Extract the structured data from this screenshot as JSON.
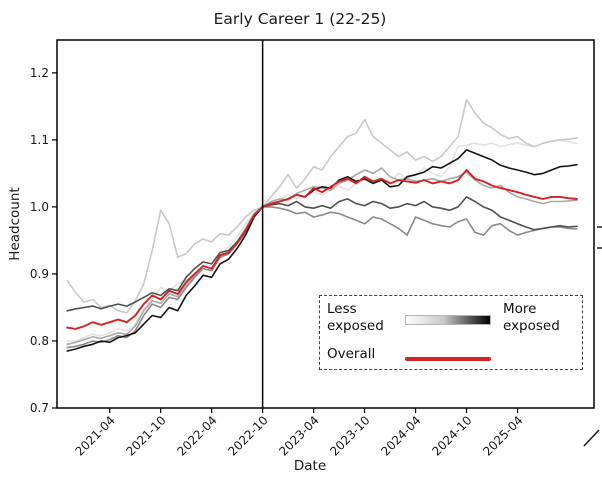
{
  "chart_data": {
    "type": "line",
    "title": "Early Career 1 (22-25)",
    "xlabel": "Date",
    "ylabel": "Headcount",
    "ylim": [
      0.7,
      1.249
    ],
    "yticks": [
      0.7,
      0.8,
      0.9,
      1.0,
      1.1,
      1.2
    ],
    "xtick_labels": [
      "2021-04",
      "2021-10",
      "2022-04",
      "2022-10",
      "2023-04",
      "2023-10",
      "2024-04",
      "2024-10",
      "2025-04"
    ],
    "cutoff_x": "2022-10",
    "grid": false,
    "legend": {
      "less_line1": "Less",
      "less_line2": "exposed",
      "more_line1": "More",
      "more_line2": "exposed",
      "overall_label": "Overall",
      "gradient_colors": [
        "#ffffff",
        "#000000"
      ],
      "overall_color": "#d62222",
      "position": "lower right",
      "border": "dashed"
    },
    "x": [
      "2020-11",
      "2020-12",
      "2021-01",
      "2021-02",
      "2021-03",
      "2021-04",
      "2021-05",
      "2021-06",
      "2021-07",
      "2021-08",
      "2021-09",
      "2021-10",
      "2021-11",
      "2021-12",
      "2022-01",
      "2022-02",
      "2022-03",
      "2022-04",
      "2022-05",
      "2022-06",
      "2022-07",
      "2022-08",
      "2022-09",
      "2022-10",
      "2022-11",
      "2022-12",
      "2023-01",
      "2023-02",
      "2023-03",
      "2023-04",
      "2023-05",
      "2023-06",
      "2023-07",
      "2023-08",
      "2023-09",
      "2023-10",
      "2023-11",
      "2023-12",
      "2024-01",
      "2024-02",
      "2024-03",
      "2024-04",
      "2024-05",
      "2024-06",
      "2024-07",
      "2024-08",
      "2024-09",
      "2024-10",
      "2024-11",
      "2024-12",
      "2025-01",
      "2025-02",
      "2025-03",
      "2025-04",
      "2025-05",
      "2025-06",
      "2025-07",
      "2025-08",
      "2025-09",
      "2025-10",
      "2025-11"
    ],
    "series": [
      {
        "name": "exposure-group-1-least",
        "color": "#e2e2e2",
        "width": 1.6,
        "values": [
          0.8,
          0.8,
          0.805,
          0.81,
          0.808,
          0.812,
          0.818,
          0.815,
          0.825,
          0.845,
          0.862,
          0.88,
          0.875,
          0.885,
          0.89,
          0.9,
          0.908,
          0.905,
          0.928,
          0.94,
          0.955,
          0.975,
          0.99,
          1.0,
          1.008,
          1.01,
          1.018,
          1.012,
          1.015,
          1.022,
          1.018,
          1.025,
          1.03,
          1.025,
          1.035,
          1.04,
          1.035,
          1.042,
          1.038,
          1.05,
          1.042,
          1.048,
          1.058,
          1.05,
          1.045,
          1.06,
          1.09,
          1.092,
          1.095,
          1.092,
          1.095,
          1.09,
          1.093,
          1.095,
          1.092,
          1.09,
          1.095,
          1.098,
          1.1,
          1.097,
          1.095
        ]
      },
      {
        "name": "exposure-group-2",
        "color": "#c9c9c9",
        "width": 1.6,
        "values": [
          0.89,
          0.872,
          0.858,
          0.862,
          0.85,
          0.853,
          0.845,
          0.842,
          0.86,
          0.885,
          0.935,
          0.995,
          0.975,
          0.925,
          0.93,
          0.945,
          0.952,
          0.948,
          0.96,
          0.958,
          0.97,
          0.985,
          0.995,
          1.0,
          1.015,
          1.03,
          1.048,
          1.028,
          1.042,
          1.06,
          1.055,
          1.075,
          1.09,
          1.105,
          1.11,
          1.13,
          1.105,
          1.095,
          1.085,
          1.075,
          1.082,
          1.07,
          1.075,
          1.068,
          1.075,
          1.09,
          1.105,
          1.16,
          1.14,
          1.125,
          1.118,
          1.108,
          1.102,
          1.105,
          1.095,
          1.09,
          1.095,
          1.098,
          1.1,
          1.101,
          1.103
        ]
      },
      {
        "name": "exposure-group-3",
        "color": "#a8a8a8",
        "width": 1.6,
        "values": [
          0.795,
          0.798,
          0.802,
          0.806,
          0.804,
          0.808,
          0.812,
          0.81,
          0.822,
          0.845,
          0.86,
          0.856,
          0.87,
          0.866,
          0.885,
          0.898,
          0.912,
          0.908,
          0.928,
          0.932,
          0.948,
          0.968,
          0.99,
          1.0,
          1.008,
          1.012,
          1.01,
          1.02,
          1.025,
          1.03,
          1.028,
          1.025,
          1.035,
          1.04,
          1.048,
          1.055,
          1.05,
          1.058,
          1.045,
          1.04,
          1.042,
          1.038,
          1.04,
          1.042,
          1.038,
          1.042,
          1.045,
          1.052,
          1.04,
          1.032,
          1.028,
          1.032,
          1.022,
          1.015,
          1.012,
          1.008,
          1.005,
          1.008,
          1.008,
          1.009,
          1.01
        ]
      },
      {
        "name": "exposure-group-4",
        "color": "#8a8a8a",
        "width": 1.6,
        "values": [
          0.79,
          0.792,
          0.795,
          0.8,
          0.798,
          0.802,
          0.808,
          0.805,
          0.815,
          0.838,
          0.855,
          0.85,
          0.865,
          0.862,
          0.88,
          0.895,
          0.908,
          0.905,
          0.925,
          0.93,
          0.945,
          0.962,
          0.988,
          1.0,
          1.0,
          0.998,
          0.995,
          0.99,
          0.992,
          0.985,
          0.988,
          0.992,
          0.99,
          0.985,
          0.98,
          0.975,
          0.985,
          0.982,
          0.975,
          0.968,
          0.958,
          0.985,
          0.98,
          0.975,
          0.972,
          0.97,
          0.978,
          0.982,
          0.962,
          0.958,
          0.972,
          0.975,
          0.965,
          0.958,
          0.962,
          0.965,
          0.968,
          0.97,
          0.97,
          0.968,
          0.967
        ]
      },
      {
        "name": "exposure-group-5",
        "color": "#505050",
        "width": 1.6,
        "values": [
          0.845,
          0.848,
          0.85,
          0.852,
          0.848,
          0.852,
          0.855,
          0.852,
          0.858,
          0.865,
          0.872,
          0.868,
          0.878,
          0.875,
          0.895,
          0.908,
          0.918,
          0.915,
          0.932,
          0.935,
          0.948,
          0.965,
          0.988,
          1.0,
          1.003,
          1.005,
          1.002,
          1.008,
          1.0,
          0.998,
          1.002,
          0.998,
          1.008,
          1.012,
          1.005,
          1.002,
          1.008,
          1.005,
          0.998,
          1.0,
          1.005,
          1.002,
          1.008,
          1.0,
          0.998,
          0.995,
          1.0,
          1.015,
          1.008,
          1.0,
          0.995,
          0.985,
          0.98,
          0.975,
          0.97,
          0.966,
          0.968,
          0.97,
          0.972,
          0.97,
          0.971
        ]
      },
      {
        "name": "exposure-group-6-most",
        "color": "#151515",
        "width": 1.6,
        "values": [
          0.785,
          0.788,
          0.792,
          0.795,
          0.8,
          0.798,
          0.805,
          0.808,
          0.812,
          0.825,
          0.838,
          0.835,
          0.85,
          0.845,
          0.868,
          0.882,
          0.898,
          0.895,
          0.915,
          0.922,
          0.938,
          0.958,
          0.985,
          1.0,
          1.005,
          1.008,
          1.012,
          1.018,
          1.015,
          1.025,
          1.03,
          1.028,
          1.04,
          1.045,
          1.038,
          1.042,
          1.035,
          1.04,
          1.03,
          1.032,
          1.045,
          1.048,
          1.052,
          1.06,
          1.058,
          1.065,
          1.072,
          1.085,
          1.08,
          1.075,
          1.07,
          1.062,
          1.058,
          1.055,
          1.052,
          1.048,
          1.05,
          1.055,
          1.06,
          1.061,
          1.063
        ]
      },
      {
        "name": "overall",
        "color": "#d62222",
        "width": 1.9,
        "values": [
          0.82,
          0.818,
          0.822,
          0.828,
          0.824,
          0.828,
          0.832,
          0.828,
          0.838,
          0.855,
          0.868,
          0.862,
          0.875,
          0.87,
          0.888,
          0.9,
          0.912,
          0.908,
          0.928,
          0.932,
          0.946,
          0.965,
          0.988,
          1.0,
          1.005,
          1.008,
          1.012,
          1.018,
          1.015,
          1.028,
          1.022,
          1.03,
          1.038,
          1.042,
          1.035,
          1.045,
          1.038,
          1.042,
          1.035,
          1.04,
          1.038,
          1.036,
          1.04,
          1.035,
          1.038,
          1.035,
          1.04,
          1.055,
          1.042,
          1.038,
          1.032,
          1.028,
          1.025,
          1.022,
          1.018,
          1.015,
          1.012,
          1.015,
          1.015,
          1.013,
          1.012
        ]
      }
    ]
  }
}
